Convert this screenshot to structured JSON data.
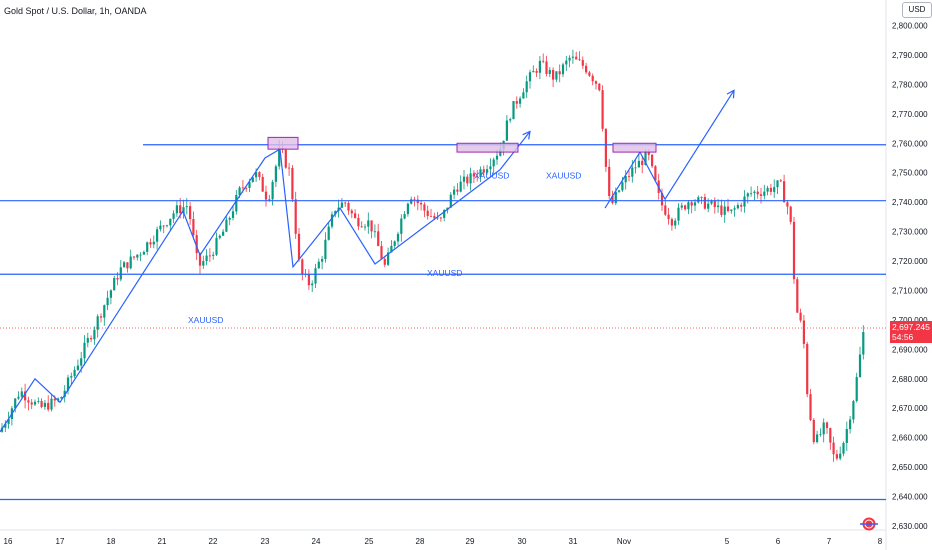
{
  "header": {
    "title": "Gold Spot / U.S. Dollar, 1h, OANDA",
    "currency": "USD"
  },
  "current_price": {
    "value": "2,697.245",
    "countdown": "54:56"
  },
  "colors": {
    "up": "#089981",
    "down": "#f23645",
    "line": "#2962ff",
    "box_fill": "#e1bee7",
    "box_stroke": "#9c27b0",
    "price": "#f23645"
  },
  "chart_data": {
    "type": "candlestick",
    "symbol": "XAUUSD",
    "ylim": [
      2628,
      2806
    ],
    "y_ticks": [
      2630,
      2640,
      2650,
      2660,
      2670,
      2680,
      2690,
      2700,
      2710,
      2720,
      2730,
      2740,
      2750,
      2760,
      2770,
      2780,
      2790,
      2800
    ],
    "x_ticks": [
      "16",
      "17",
      "18",
      "21",
      "22",
      "23",
      "24",
      "25",
      "28",
      "29",
      "30",
      "31",
      "Nov",
      "5",
      "6",
      "7",
      "8"
    ],
    "price_path": [
      [
        0,
        2662
      ],
      [
        20,
        2676
      ],
      [
        40,
        2670
      ],
      [
        60,
        2673
      ],
      [
        80,
        2687
      ],
      [
        100,
        2702
      ],
      [
        120,
        2717
      ],
      [
        140,
        2723
      ],
      [
        160,
        2731
      ],
      [
        175,
        2737
      ],
      [
        188,
        2739
      ],
      [
        198,
        2718
      ],
      [
        210,
        2722
      ],
      [
        225,
        2731
      ],
      [
        240,
        2744
      ],
      [
        255,
        2750
      ],
      [
        268,
        2741
      ],
      [
        280,
        2758
      ],
      [
        290,
        2750
      ],
      [
        300,
        2716
      ],
      [
        310,
        2712
      ],
      [
        322,
        2722
      ],
      [
        335,
        2738
      ],
      [
        345,
        2740
      ],
      [
        355,
        2734
      ],
      [
        370,
        2733
      ],
      [
        385,
        2718
      ],
      [
        398,
        2731
      ],
      [
        410,
        2743
      ],
      [
        425,
        2737
      ],
      [
        440,
        2733
      ],
      [
        455,
        2745
      ],
      [
        470,
        2748
      ],
      [
        485,
        2752
      ],
      [
        500,
        2758
      ],
      [
        510,
        2770
      ],
      [
        525,
        2780
      ],
      [
        540,
        2787
      ],
      [
        555,
        2782
      ],
      [
        570,
        2789
      ],
      [
        585,
        2786
      ],
      [
        600,
        2779
      ],
      [
        605,
        2755
      ],
      [
        610,
        2738
      ],
      [
        622,
        2746
      ],
      [
        635,
        2752
      ],
      [
        648,
        2756
      ],
      [
        660,
        2740
      ],
      [
        672,
        2734
      ],
      [
        690,
        2741
      ],
      [
        710,
        2739
      ],
      [
        730,
        2736
      ],
      [
        750,
        2743
      ],
      [
        765,
        2744
      ],
      [
        780,
        2746
      ],
      [
        790,
        2736
      ],
      [
        796,
        2704
      ],
      [
        803,
        2696
      ],
      [
        808,
        2672
      ],
      [
        815,
        2658
      ],
      [
        825,
        2664
      ],
      [
        835,
        2652
      ],
      [
        845,
        2660
      ],
      [
        855,
        2676
      ],
      [
        864,
        2697
      ]
    ],
    "horizontal_levels": [
      2759.5,
      2740.5,
      2715.5,
      2639
    ],
    "current_price_level": 2697.245,
    "annotations": [
      {
        "text": "XAUUSD",
        "x": 188,
        "price": 2699
      },
      {
        "text": "XAUUSD",
        "x": 427,
        "price": 2715
      },
      {
        "text": "XAUUSD",
        "x": 474,
        "price": 2748
      },
      {
        "text": "XAUUSD",
        "x": 546,
        "price": 2748
      }
    ],
    "trend_path": [
      [
        0,
        2662
      ],
      [
        35,
        2680
      ],
      [
        60,
        2672
      ],
      [
        183,
        2737
      ],
      [
        200,
        2722
      ],
      [
        265,
        2755
      ],
      [
        280,
        2758
      ],
      [
        293,
        2718
      ],
      [
        340,
        2738
      ],
      [
        375,
        2719
      ],
      [
        500,
        2751
      ]
    ],
    "resistance_boxes": [
      {
        "x0": 268,
        "x1": 298,
        "p0": 2758,
        "p1": 2762
      },
      {
        "x0": 457,
        "x1": 518,
        "p0": 2757,
        "p1": 2760
      },
      {
        "x0": 613,
        "x1": 656,
        "p0": 2757,
        "p1": 2760
      }
    ],
    "arrows": [
      {
        "from": [
          500,
          2751
        ],
        "to": [
          530,
          2764
        ]
      },
      {
        "from": [
          665,
          2741
        ],
        "to": [
          734,
          2778
        ]
      }
    ],
    "segments": [
      {
        "from": [
          605,
          2738
        ],
        "to": [
          640,
          2757
        ]
      },
      {
        "from": [
          640,
          2757
        ],
        "to": [
          665,
          2741
        ]
      }
    ]
  }
}
